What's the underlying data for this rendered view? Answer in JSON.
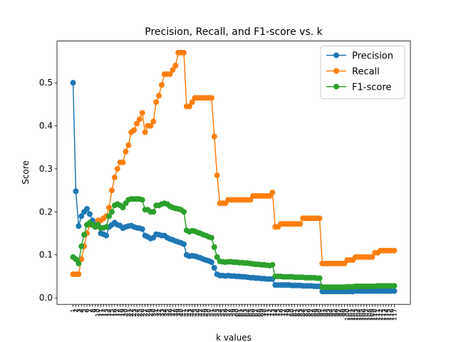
{
  "chart_data": {
    "type": "line",
    "title": "Precision, Recall, and F1-score vs. k",
    "x_label": "k values",
    "y_label": "Score",
    "categories": [
      "1",
      "2",
      "3",
      "4",
      "5",
      "6",
      "7",
      "8",
      "9",
      "10",
      "11",
      "12",
      "13",
      "14",
      "15",
      "16",
      "17",
      "18",
      "19",
      "20",
      "21",
      "22",
      "23",
      "24",
      "25",
      "26",
      "27",
      "28",
      "29",
      "30",
      "31",
      "32",
      "33",
      "34",
      "35",
      "36",
      "37",
      "38",
      "39",
      "40",
      "41",
      "42",
      "43",
      "44",
      "45",
      "46",
      "47",
      "48",
      "49",
      "50",
      "51",
      "52",
      "53",
      "54",
      "55",
      "56",
      "57",
      "58",
      "59",
      "60",
      "61",
      "62",
      "63",
      "64",
      "65",
      "66",
      "67",
      "68",
      "69",
      "70",
      "71",
      "72",
      "73",
      "74",
      "75",
      "76",
      "77",
      "78",
      "79",
      "80",
      "81",
      "82",
      "83",
      "84",
      "85",
      "86",
      "87",
      "88",
      "89",
      "90",
      "91",
      "92",
      "93",
      "94",
      "95",
      "96",
      "97",
      "98",
      "99",
      "100",
      "101",
      "102",
      "103",
      "104",
      "105",
      "106",
      "107",
      "108",
      "109",
      "110",
      "111",
      "112",
      "113",
      "114",
      "115",
      "116",
      "117"
    ],
    "series": [
      {
        "name": "Precision",
        "color": "#1f77b4",
        "values": [
          0.5,
          0.248,
          0.167,
          0.19,
          0.2,
          0.207,
          0.195,
          0.18,
          0.17,
          0.175,
          0.15,
          0.148,
          0.145,
          0.165,
          0.17,
          0.175,
          0.17,
          0.168,
          0.162,
          0.165,
          0.167,
          0.168,
          0.165,
          0.163,
          0.162,
          0.16,
          0.145,
          0.142,
          0.138,
          0.14,
          0.148,
          0.147,
          0.145,
          0.145,
          0.14,
          0.137,
          0.135,
          0.132,
          0.13,
          0.128,
          0.125,
          0.1,
          0.097,
          0.098,
          0.097,
          0.095,
          0.093,
          0.09,
          0.088,
          0.086,
          0.083,
          0.07,
          0.055,
          0.052,
          0.052,
          0.051,
          0.052,
          0.051,
          0.051,
          0.05,
          0.05,
          0.049,
          0.049,
          0.048,
          0.047,
          0.047,
          0.046,
          0.046,
          0.045,
          0.045,
          0.044,
          0.044,
          0.044,
          0.03,
          0.03,
          0.03,
          0.03,
          0.03,
          0.03,
          0.029,
          0.029,
          0.029,
          0.029,
          0.028,
          0.028,
          0.028,
          0.028,
          0.027,
          0.027,
          0.027,
          0.015,
          0.015,
          0.015,
          0.015,
          0.015,
          0.015,
          0.015,
          0.015,
          0.015,
          0.015,
          0.015,
          0.015,
          0.016,
          0.016,
          0.016,
          0.016,
          0.016,
          0.016,
          0.016,
          0.016,
          0.016,
          0.016,
          0.016,
          0.016,
          0.016,
          0.016,
          0.016
        ]
      },
      {
        "name": "Recall",
        "color": "#ff7f0e",
        "values": [
          0.055,
          0.055,
          0.055,
          0.09,
          0.12,
          0.15,
          0.17,
          0.17,
          0.165,
          0.18,
          0.18,
          0.185,
          0.19,
          0.21,
          0.25,
          0.28,
          0.3,
          0.315,
          0.315,
          0.34,
          0.355,
          0.385,
          0.39,
          0.405,
          0.415,
          0.43,
          0.385,
          0.4,
          0.4,
          0.41,
          0.455,
          0.47,
          0.495,
          0.52,
          0.52,
          0.52,
          0.53,
          0.54,
          0.57,
          0.57,
          0.57,
          0.445,
          0.445,
          0.455,
          0.465,
          0.465,
          0.465,
          0.465,
          0.465,
          0.465,
          0.465,
          0.375,
          0.285,
          0.22,
          0.22,
          0.22,
          0.228,
          0.228,
          0.228,
          0.228,
          0.228,
          0.228,
          0.228,
          0.228,
          0.228,
          0.237,
          0.237,
          0.237,
          0.237,
          0.237,
          0.237,
          0.237,
          0.245,
          0.165,
          0.165,
          0.172,
          0.172,
          0.172,
          0.172,
          0.172,
          0.172,
          0.172,
          0.172,
          0.185,
          0.185,
          0.185,
          0.185,
          0.185,
          0.185,
          0.185,
          0.08,
          0.08,
          0.08,
          0.08,
          0.08,
          0.08,
          0.08,
          0.08,
          0.08,
          0.088,
          0.088,
          0.088,
          0.095,
          0.095,
          0.095,
          0.095,
          0.095,
          0.095,
          0.095,
          0.105,
          0.105,
          0.11,
          0.11,
          0.11,
          0.11,
          0.11,
          0.11
        ]
      },
      {
        "name": "F1-score",
        "color": "#2ca02c",
        "values": [
          0.095,
          0.09,
          0.08,
          0.12,
          0.147,
          0.17,
          0.175,
          0.17,
          0.165,
          0.17,
          0.162,
          0.163,
          0.165,
          0.19,
          0.2,
          0.215,
          0.218,
          0.215,
          0.21,
          0.22,
          0.228,
          0.23,
          0.23,
          0.23,
          0.23,
          0.228,
          0.205,
          0.205,
          0.2,
          0.2,
          0.215,
          0.215,
          0.218,
          0.22,
          0.218,
          0.213,
          0.21,
          0.208,
          0.207,
          0.205,
          0.2,
          0.157,
          0.154,
          0.156,
          0.155,
          0.152,
          0.15,
          0.147,
          0.145,
          0.142,
          0.14,
          0.118,
          0.095,
          0.085,
          0.084,
          0.083,
          0.084,
          0.084,
          0.083,
          0.083,
          0.082,
          0.082,
          0.081,
          0.081,
          0.08,
          0.079,
          0.078,
          0.078,
          0.077,
          0.077,
          0.076,
          0.075,
          0.077,
          0.05,
          0.05,
          0.05,
          0.049,
          0.049,
          0.049,
          0.049,
          0.048,
          0.048,
          0.048,
          0.048,
          0.047,
          0.047,
          0.047,
          0.047,
          0.046,
          0.046,
          0.025,
          0.025,
          0.025,
          0.025,
          0.025,
          0.025,
          0.025,
          0.025,
          0.025,
          0.026,
          0.026,
          0.026,
          0.027,
          0.027,
          0.027,
          0.027,
          0.027,
          0.027,
          0.027,
          0.027,
          0.028,
          0.028,
          0.028,
          0.028,
          0.028,
          0.028,
          0.028
        ]
      }
    ],
    "ylim": [
      -0.015,
      0.597
    ],
    "yticks": [
      {
        "value": 0,
        "label": "0.0"
      },
      0.1,
      0.2,
      0.3,
      0.4,
      0.5
    ],
    "legend": "upper right",
    "grid": false
  }
}
